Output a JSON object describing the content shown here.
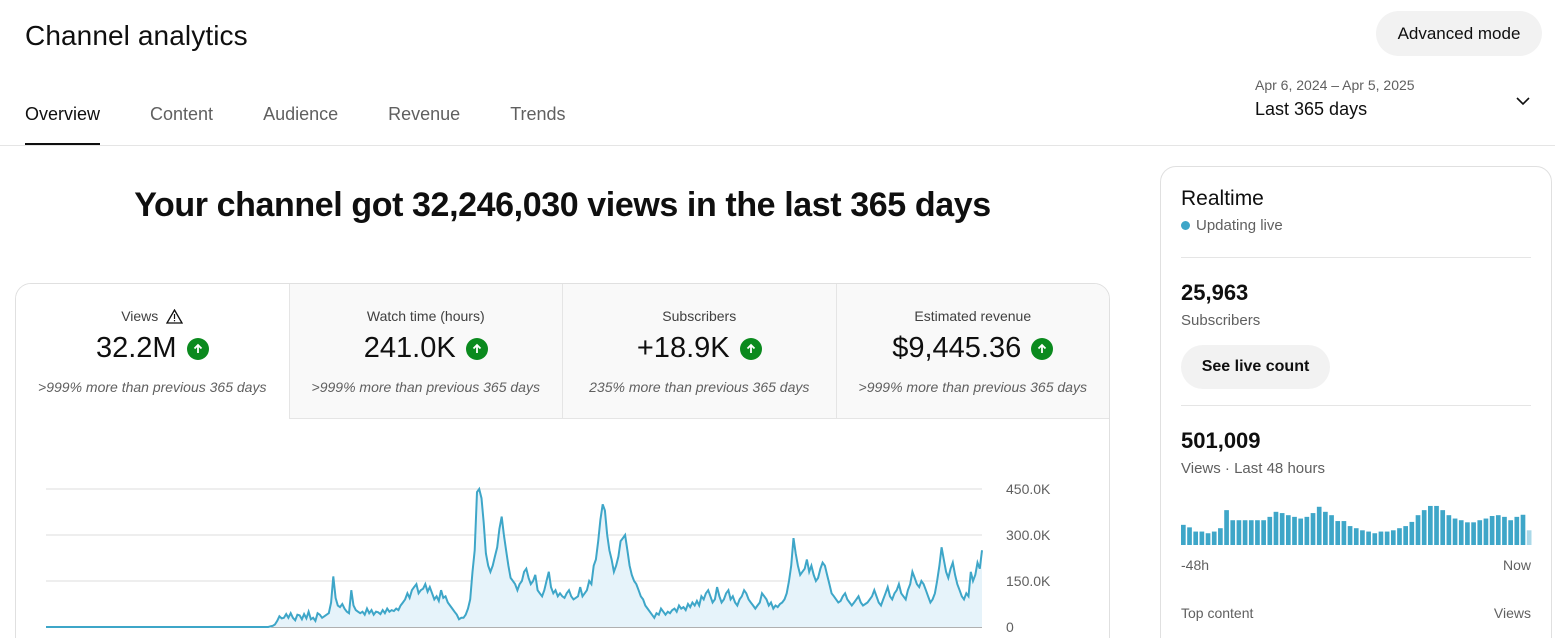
{
  "header": {
    "title": "Channel analytics",
    "advanced_label": "Advanced mode"
  },
  "tabs": [
    {
      "label": "Overview",
      "active": true
    },
    {
      "label": "Content",
      "active": false
    },
    {
      "label": "Audience",
      "active": false
    },
    {
      "label": "Revenue",
      "active": false
    },
    {
      "label": "Trends",
      "active": false
    }
  ],
  "date": {
    "range": "Apr 6, 2024 – Apr 5, 2025",
    "label": "Last 365 days",
    "icon": "chevron-down-icon"
  },
  "headline": "Your channel got 32,246,030 views in the last 365 days",
  "metrics": [
    {
      "label": "Views",
      "value": "32.2M",
      "delta": ">999% more than previous 365 days",
      "warning": true,
      "selected": true
    },
    {
      "label": "Watch time (hours)",
      "value": "241.0K",
      "delta": ">999% more than previous 365 days",
      "warning": false,
      "selected": false
    },
    {
      "label": "Subscribers",
      "value": "+18.9K",
      "delta": "235% more than previous 365 days",
      "warning": false,
      "selected": false
    },
    {
      "label": "Estimated revenue",
      "value": "$9,445.36",
      "delta": ">999% more than previous 365 days",
      "warning": false,
      "selected": false
    }
  ],
  "colors": {
    "line": "#3ea6c8",
    "fill": "#e6f3fa",
    "up": "#0b8a1e"
  },
  "chart_data": {
    "type": "area",
    "ytick_labels": [
      "0",
      "150.0K",
      "300.0K",
      "450.0K"
    ],
    "ylim": [
      0,
      450000
    ],
    "grid": true,
    "series": [
      {
        "values": [
          0,
          0,
          0,
          0,
          0,
          0,
          0,
          0,
          0,
          0,
          0,
          0,
          0,
          0,
          0,
          0,
          0,
          0,
          0,
          0,
          0,
          0,
          0,
          0,
          0,
          0,
          0,
          0,
          0,
          0,
          0,
          0,
          0,
          0,
          0,
          0,
          0,
          0,
          0,
          0,
          0,
          0,
          0,
          0,
          0,
          0,
          0,
          0,
          0,
          0,
          0,
          0,
          0,
          0,
          0,
          0,
          0,
          0,
          0,
          0,
          0,
          0,
          0,
          0,
          0,
          0,
          0,
          0,
          0,
          0,
          0,
          0,
          0,
          0,
          0,
          0,
          0,
          0,
          0,
          0,
          0,
          0,
          0,
          0,
          0,
          0,
          0,
          0,
          0,
          0,
          0,
          0,
          0,
          0,
          0,
          0,
          0,
          0,
          0,
          0,
          2000,
          4000,
          8000,
          20000,
          35000,
          28000,
          30000,
          42000,
          30000,
          45000,
          30000,
          22000,
          40000,
          38000,
          25000,
          42000,
          28000,
          50000,
          25000,
          30000,
          20000,
          45000,
          40000,
          30000,
          35000,
          40000,
          45000,
          80000,
          165000,
          95000,
          70000,
          65000,
          75000,
          60000,
          50000,
          45000,
          120000,
          70000,
          55000,
          50000,
          45000,
          50000,
          40000,
          60000,
          45000,
          55000,
          40000,
          50000,
          48000,
          42000,
          55000,
          45000,
          60000,
          50000,
          55000,
          52000,
          60000,
          55000,
          70000,
          80000,
          90000,
          110000,
          95000,
          120000,
          130000,
          140000,
          110000,
          120000,
          125000,
          140000,
          115000,
          130000,
          110000,
          90000,
          100000,
          85000,
          120000,
          95000,
          100000,
          80000,
          70000,
          60000,
          50000,
          40000,
          25000,
          30000,
          30000,
          40000,
          60000,
          90000,
          180000,
          250000,
          440000,
          450000,
          420000,
          340000,
          240000,
          200000,
          180000,
          200000,
          230000,
          260000,
          320000,
          360000,
          300000,
          250000,
          200000,
          160000,
          150000,
          140000,
          120000,
          140000,
          150000,
          180000,
          190000,
          160000,
          140000,
          150000,
          170000,
          120000,
          110000,
          100000,
          120000,
          150000,
          180000,
          130000,
          110000,
          120000,
          100000,
          110000,
          100000,
          95000,
          110000,
          120000,
          100000,
          90000,
          95000,
          100000,
          130000,
          100000,
          110000,
          120000,
          150000,
          140000,
          200000,
          220000,
          280000,
          350000,
          400000,
          380000,
          300000,
          250000,
          220000,
          180000,
          200000,
          230000,
          280000,
          290000,
          300000,
          250000,
          200000,
          170000,
          150000,
          140000,
          120000,
          100000,
          90000,
          70000,
          60000,
          50000,
          40000,
          30000,
          45000,
          40000,
          60000,
          50000,
          40000,
          50000,
          45000,
          55000,
          60000,
          50000,
          70000,
          60000,
          65000,
          55000,
          75000,
          65000,
          80000,
          70000,
          85000,
          70000,
          100000,
          90000,
          110000,
          120000,
          100000,
          80000,
          90000,
          130000,
          100000,
          80000,
          90000,
          110000,
          120000,
          90000,
          100000,
          80000,
          70000,
          90000,
          100000,
          120000,
          110000,
          90000,
          80000,
          70000,
          60000,
          70000,
          80000,
          110000,
          100000,
          90000,
          70000,
          80000,
          60000,
          70000,
          65000,
          75000,
          80000,
          90000,
          110000,
          150000,
          200000,
          290000,
          240000,
          200000,
          170000,
          180000,
          190000,
          220000,
          180000,
          200000,
          170000,
          150000,
          160000,
          190000,
          210000,
          200000,
          170000,
          140000,
          110000,
          100000,
          90000,
          80000,
          85000,
          100000,
          110000,
          90000,
          80000,
          70000,
          80000,
          90000,
          100000,
          80000,
          70000,
          75000,
          80000,
          90000,
          100000,
          120000,
          100000,
          80000,
          70000,
          90000,
          110000,
          130000,
          100000,
          90000,
          110000,
          120000,
          140000,
          110000,
          100000,
          90000,
          120000,
          140000,
          180000,
          160000,
          140000,
          130000,
          150000,
          140000,
          120000,
          100000,
          80000,
          90000,
          110000,
          150000,
          200000,
          260000,
          220000,
          180000,
          160000,
          190000,
          210000,
          170000,
          140000,
          120000,
          100000,
          90000,
          110000,
          100000,
          180000,
          150000,
          170000,
          210000,
          190000,
          250000
        ]
      }
    ]
  },
  "realtime": {
    "title": "Realtime",
    "status": "Updating live",
    "subs_value": "25,963",
    "subs_label": "Subscribers",
    "live_button": "See live count",
    "views_value": "501,009",
    "views_label": "Views · Last 48 hours",
    "axis_left": "-48h",
    "axis_right": "Now",
    "top_left": "Top content",
    "top_right": "Views",
    "bars": [
      0.48,
      0.42,
      0.32,
      0.32,
      0.28,
      0.32,
      0.4,
      0.83,
      0.59,
      0.59,
      0.59,
      0.59,
      0.59,
      0.59,
      0.67,
      0.79,
      0.76,
      0.71,
      0.67,
      0.63,
      0.67,
      0.76,
      0.91,
      0.79,
      0.71,
      0.57,
      0.57,
      0.45,
      0.4,
      0.35,
      0.32,
      0.28,
      0.32,
      0.32,
      0.35,
      0.4,
      0.45,
      0.55,
      0.71,
      0.83,
      0.93,
      0.93,
      0.83,
      0.71,
      0.63,
      0.59,
      0.54,
      0.54,
      0.59,
      0.63,
      0.69,
      0.71,
      0.67,
      0.59,
      0.67,
      0.72,
      0.35
    ]
  }
}
